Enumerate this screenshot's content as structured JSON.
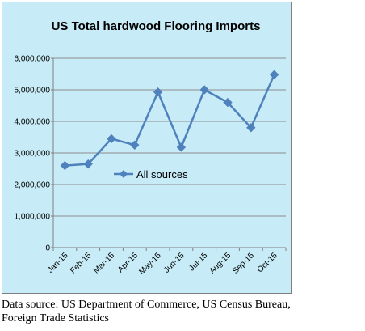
{
  "chart_data": {
    "type": "line",
    "title": "US Total hardwood Flooring Imports",
    "xlabel": "",
    "ylabel": "",
    "categories": [
      "Jan-15",
      "Feb-15",
      "Mar-15",
      "Apr-15",
      "May-15",
      "Jun-15",
      "Jul-15",
      "Aug-15",
      "Sep-15",
      "Oct-15"
    ],
    "series": [
      {
        "name": "All sources",
        "values": [
          2600000,
          2650000,
          3450000,
          3250000,
          4930000,
          3180000,
          5000000,
          4600000,
          3800000,
          5480000
        ]
      }
    ],
    "ylim": [
      0,
      6000000
    ],
    "yticks": [
      0,
      1000000,
      2000000,
      3000000,
      4000000,
      5000000,
      6000000
    ],
    "ytick_labels": [
      "0",
      "1,000,000",
      "2,000,000",
      "3,000,000",
      "4,000,000",
      "5,000,000",
      "6,000,000"
    ],
    "grid": true,
    "legend_position": "center",
    "colors": {
      "plot_background": "#c7ecf7",
      "series_line": "#4f81bd",
      "gridline": "#8c8c8c"
    }
  },
  "caption": {
    "line1": "Data source: US Department of Commerce, US Census Bureau,",
    "line2": "Foreign Trade Statistics"
  }
}
